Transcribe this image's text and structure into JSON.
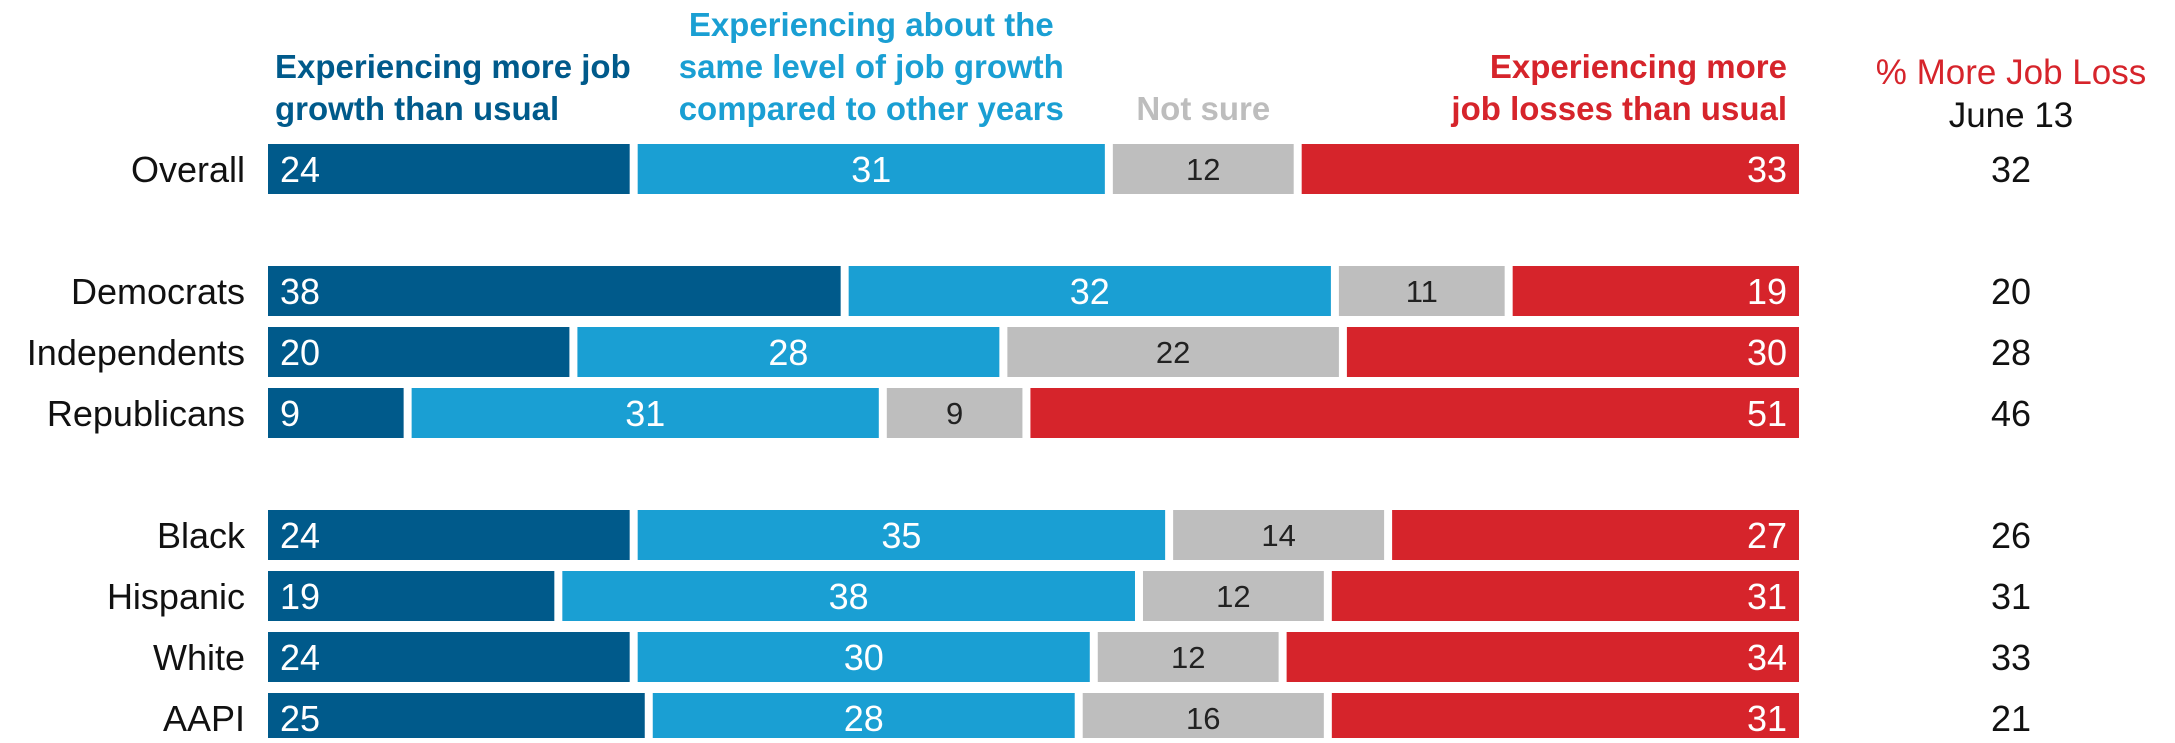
{
  "colors": {
    "more_growth": "#005a8b",
    "same_level": "#1a9fd3",
    "not_sure": "#bebebe",
    "more_losses": "#d6242b",
    "bar_label_light": "#ffffff",
    "bar_label_dark": "#222222",
    "row_label": "#111111",
    "header_not_sure": "#bdbdbd"
  },
  "chart_data": {
    "type": "bar",
    "orientation": "horizontal",
    "stacked": true,
    "normalized_to": 100,
    "legend_placement": "top",
    "grid": false,
    "series": [
      {
        "name": "Experiencing more job growth than usual",
        "color": "#005a8b",
        "values": [
          24,
          38,
          20,
          9,
          24,
          19,
          24,
          25
        ]
      },
      {
        "name": "Experiencing about the same level of job growth compared to other years",
        "color": "#1a9fd3",
        "values": [
          31,
          32,
          28,
          31,
          35,
          38,
          30,
          28
        ]
      },
      {
        "name": "Not sure",
        "color": "#bebebe",
        "values": [
          12,
          11,
          22,
          9,
          14,
          12,
          12,
          16
        ]
      },
      {
        "name": "Experiencing more job losses than usual",
        "color": "#d6242b",
        "values": [
          33,
          19,
          30,
          51,
          27,
          31,
          34,
          31
        ]
      }
    ],
    "categories": [
      "Overall",
      "Democrats",
      "Independents",
      "Republicans",
      "Black",
      "Hispanic",
      "White",
      "AAPI"
    ],
    "groups": [
      [
        "Overall"
      ],
      [
        "Democrats",
        "Independents",
        "Republicans"
      ],
      [
        "Black",
        "Hispanic",
        "White",
        "AAPI"
      ]
    ],
    "comparison_column": {
      "title": "% More Job Loss",
      "subtitle": "June 13",
      "values": [
        32,
        20,
        28,
        46,
        26,
        31,
        33,
        21
      ]
    }
  },
  "headers": {
    "more_growth": [
      "Experiencing more job",
      "growth than usual"
    ],
    "same_level": [
      "Experiencing about the",
      "same level of job growth",
      "compared to other years"
    ],
    "not_sure": [
      "Not sure"
    ],
    "more_losses": [
      "Experiencing more",
      "job losses than usual"
    ]
  }
}
